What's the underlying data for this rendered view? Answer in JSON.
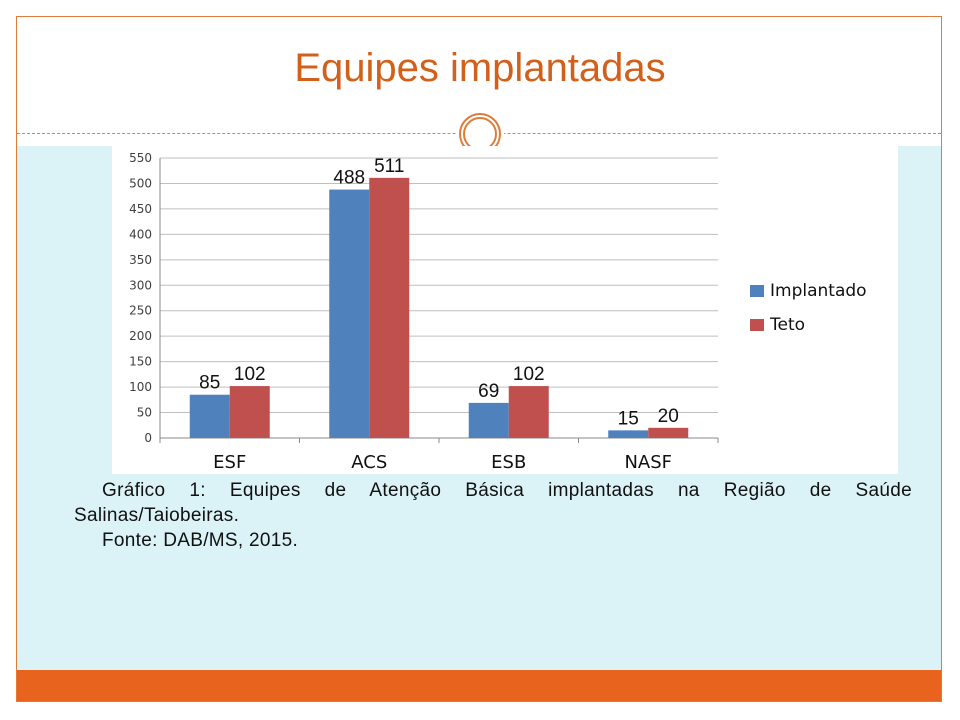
{
  "slide": {
    "title": "Equipes implantadas",
    "caption_line1": "Gráfico 1: Equipes de Atenção Básica implantadas na Região de Saúde",
    "caption_line2": "Salinas/Taiobeiras.",
    "caption_line3": "Fonte: DAB/MS, 2015."
  },
  "colors": {
    "accent": "#e8641e",
    "title": "#d2601a",
    "content_background": "#dbf3f7",
    "series_implantado": "#4f81bd",
    "series_teto": "#c0504d"
  },
  "chart_data": {
    "type": "bar",
    "title": "",
    "xlabel": "",
    "ylabel": "",
    "categories": [
      "ESF",
      "ACS",
      "ESB",
      "NASF"
    ],
    "series": [
      {
        "name": "Implantado",
        "values": [
          85,
          488,
          69,
          15
        ],
        "color": "#4f81bd"
      },
      {
        "name": "Teto",
        "values": [
          102,
          511,
          102,
          20
        ],
        "color": "#c0504d"
      }
    ],
    "ylim": [
      0,
      550
    ],
    "yticks": [
      0,
      50,
      100,
      150,
      200,
      250,
      300,
      350,
      400,
      450,
      500,
      550
    ],
    "grid": true,
    "legend_position": "right"
  }
}
